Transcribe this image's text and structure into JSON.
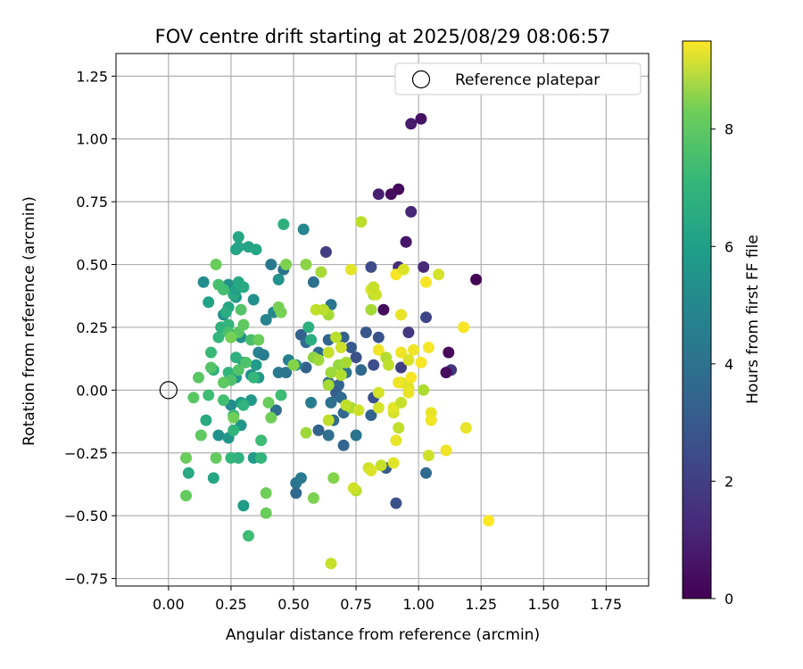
{
  "chart_data": {
    "type": "scatter",
    "title": "FOV centre drift starting at 2025/08/29 08:06:57",
    "xlabel": "Angular distance from reference (arcmin)",
    "ylabel": "Rotation from reference (arcmin)",
    "xlim": [
      -0.21,
      1.92
    ],
    "ylim": [
      -0.78,
      1.34
    ],
    "x_ticks": [
      "0.00",
      "0.25",
      "0.50",
      "0.75",
      "1.00",
      "1.25",
      "1.50",
      "1.75"
    ],
    "y_ticks": [
      "−0.75",
      "−0.50",
      "−0.25",
      "0.00",
      "0.25",
      "0.50",
      "0.75",
      "1.00",
      "1.25"
    ],
    "grid": true,
    "legend": {
      "position": "top-right",
      "entries": [
        "Reference platepar"
      ]
    },
    "colorbar": {
      "label": "Hours from first FF file",
      "range": [
        0,
        9.5
      ],
      "ticks": [
        "0",
        "2",
        "4",
        "6",
        "8"
      ],
      "colormap": "viridis"
    },
    "reference_point": {
      "x": 0.0,
      "y": 0.0
    },
    "series": [
      {
        "points": [
          [
            1.01,
            1.08,
            0.4
          ],
          [
            0.97,
            1.06,
            0.7
          ],
          [
            0.92,
            0.8,
            0.2
          ],
          [
            0.84,
            0.78,
            0.8
          ],
          [
            0.89,
            0.78,
            0.3
          ],
          [
            0.97,
            0.71,
            1.0
          ],
          [
            0.95,
            0.59,
            0.5
          ],
          [
            0.95,
            0.59,
            0.6
          ],
          [
            1.23,
            0.44,
            0.1
          ],
          [
            1.02,
            0.49,
            1.1
          ],
          [
            0.92,
            0.49,
            1.2
          ],
          [
            0.86,
            0.32,
            0.3
          ],
          [
            1.12,
            0.15,
            0.2
          ],
          [
            1.13,
            0.08,
            1.5
          ],
          [
            1.11,
            0.07,
            0.3
          ],
          [
            0.63,
            0.55,
            1.7
          ],
          [
            0.96,
            0.23,
            1.6
          ],
          [
            1.03,
            0.29,
            2.0
          ],
          [
            0.81,
            0.49,
            2.2
          ],
          [
            0.93,
            0.09,
            1.8
          ],
          [
            0.82,
            0.1,
            2.3
          ],
          [
            0.84,
            0.21,
            2.5
          ],
          [
            0.87,
            -0.31,
            2.8
          ],
          [
            0.91,
            -0.45,
            2.4
          ],
          [
            1.03,
            -0.33,
            3.3
          ],
          [
            0.79,
            0.23,
            2.6
          ],
          [
            0.73,
            0.17,
            2.7
          ],
          [
            0.75,
            0.13,
            2.4
          ],
          [
            0.7,
            0.21,
            3.0
          ],
          [
            0.77,
            0.08,
            3.2
          ],
          [
            0.64,
            0.2,
            3.1
          ],
          [
            0.58,
            0.43,
            3.5
          ],
          [
            0.53,
            0.22,
            2.9
          ],
          [
            0.55,
            0.19,
            3.3
          ],
          [
            0.57,
            0.2,
            3.8
          ],
          [
            0.6,
            0.15,
            3.4
          ],
          [
            0.55,
            0.09,
            3.0
          ],
          [
            0.65,
            0.34,
            3.7
          ],
          [
            0.64,
            0.03,
            3.4
          ],
          [
            0.68,
            0.02,
            3.1
          ],
          [
            0.71,
            0.07,
            3.6
          ],
          [
            0.67,
            -0.01,
            2.8
          ],
          [
            0.69,
            -0.03,
            3.3
          ],
          [
            0.82,
            -0.03,
            2.4
          ],
          [
            0.65,
            -0.05,
            3.5
          ],
          [
            0.7,
            -0.09,
            3.2
          ],
          [
            0.66,
            -0.12,
            3.3
          ],
          [
            0.6,
            -0.16,
            3.0
          ],
          [
            0.64,
            -0.18,
            3.4
          ],
          [
            0.7,
            -0.22,
            3.1
          ],
          [
            0.75,
            -0.18,
            3.6
          ],
          [
            0.81,
            -0.1,
            3.0
          ],
          [
            0.57,
            -0.05,
            4.0
          ],
          [
            0.51,
            -0.37,
            3.6
          ],
          [
            0.53,
            -0.35,
            3.9
          ],
          [
            0.51,
            -0.41,
            3.2
          ],
          [
            0.41,
            0.5,
            3.8
          ],
          [
            0.46,
            0.48,
            3.6
          ],
          [
            0.44,
            0.07,
            3.9
          ],
          [
            0.43,
            -0.08,
            3.4
          ],
          [
            0.39,
            0.28,
            4.3
          ],
          [
            0.36,
            0.15,
            4.3
          ],
          [
            0.38,
            0.14,
            4.0
          ],
          [
            0.48,
            0.12,
            4.2
          ],
          [
            0.47,
            0.07,
            3.7
          ],
          [
            0.51,
            0.1,
            4.6
          ],
          [
            0.54,
            0.64,
            4.4
          ],
          [
            0.42,
            0.31,
            4.5
          ],
          [
            0.44,
            0.44,
            4.9
          ],
          [
            0.34,
            0.36,
            4.8
          ],
          [
            0.27,
            0.37,
            5.1
          ],
          [
            0.24,
            0.42,
            4.8
          ],
          [
            0.14,
            0.43,
            4.6
          ],
          [
            0.22,
            0.3,
            4.8
          ],
          [
            0.29,
            0.21,
            4.8
          ],
          [
            0.25,
            0.21,
            5.2
          ],
          [
            0.3,
            0.11,
            5.0
          ],
          [
            0.33,
            0.06,
            4.8
          ],
          [
            0.35,
            0.1,
            5.2
          ],
          [
            0.36,
            0.05,
            5.2
          ],
          [
            0.27,
            0.05,
            5.0
          ],
          [
            0.25,
            -0.06,
            4.6
          ],
          [
            0.29,
            -0.05,
            5.3
          ],
          [
            0.33,
            -0.04,
            5.0
          ],
          [
            0.24,
            -0.19,
            5.0
          ],
          [
            0.29,
            -0.14,
            5.0
          ],
          [
            0.34,
            -0.27,
            5.2
          ],
          [
            0.2,
            -0.18,
            4.8
          ],
          [
            0.3,
            -0.46,
            5.2
          ],
          [
            0.18,
            -0.35,
            5.6
          ],
          [
            0.08,
            -0.33,
            5.7
          ],
          [
            0.15,
            -0.12,
            5.8
          ],
          [
            0.26,
            0.38,
            5.8
          ],
          [
            0.27,
            0.4,
            5.4
          ],
          [
            0.24,
            0.33,
            5.6
          ],
          [
            0.23,
            0.31,
            5.9
          ],
          [
            0.28,
            0.57,
            5.6
          ],
          [
            0.28,
            0.61,
            5.6
          ],
          [
            0.32,
            0.57,
            5.5
          ],
          [
            0.35,
            0.56,
            5.6
          ],
          [
            0.46,
            0.66,
            6.0
          ],
          [
            0.56,
            0.25,
            6.0
          ],
          [
            0.57,
            0.2,
            5.9
          ],
          [
            0.3,
            0.41,
            5.8
          ],
          [
            0.16,
            0.35,
            5.4
          ],
          [
            0.27,
            0.56,
            5.5
          ],
          [
            0.28,
            0.43,
            5.7
          ],
          [
            0.17,
            0.15,
            6.4
          ],
          [
            0.18,
            0.08,
            6.1
          ],
          [
            0.2,
            0.21,
            6.3
          ],
          [
            0.21,
            0.25,
            6.1
          ],
          [
            0.24,
            0.26,
            6.2
          ],
          [
            0.27,
            0.13,
            6.0
          ],
          [
            0.3,
            -0.06,
            6.1
          ],
          [
            0.24,
            0.07,
            6.2
          ],
          [
            0.26,
            -0.1,
            6.3
          ],
          [
            0.26,
            -0.16,
            6.2
          ],
          [
            0.25,
            -0.27,
            6.3
          ],
          [
            0.28,
            -0.27,
            6.1
          ],
          [
            0.37,
            -0.27,
            6.2
          ],
          [
            0.37,
            -0.2,
            6.5
          ],
          [
            0.34,
            0.05,
            6.3
          ],
          [
            0.45,
            -0.02,
            6.5
          ],
          [
            0.22,
            -0.04,
            6.6
          ],
          [
            0.25,
            0.04,
            6.8
          ],
          [
            0.28,
            0.23,
            7.0
          ],
          [
            0.29,
            0.32,
            6.9
          ],
          [
            0.3,
            0.26,
            7.1
          ],
          [
            0.24,
            0.23,
            6.7
          ],
          [
            0.22,
            0.03,
            7.1
          ],
          [
            0.28,
            0.08,
            6.9
          ],
          [
            0.31,
            0.11,
            6.8
          ],
          [
            0.33,
            0.2,
            6.7
          ],
          [
            0.2,
            0.42,
            6.7
          ],
          [
            0.22,
            0.4,
            6.6
          ],
          [
            0.16,
            -0.02,
            6.5
          ],
          [
            0.17,
            0.09,
            6.9
          ],
          [
            0.12,
            0.05,
            7.0
          ],
          [
            0.1,
            -0.03,
            7.0
          ],
          [
            0.13,
            -0.18,
            7.1
          ],
          [
            0.19,
            -0.27,
            7.2
          ],
          [
            0.36,
            0.2,
            7.3
          ],
          [
            0.4,
            -0.05,
            7.3
          ],
          [
            0.41,
            -0.11,
            7.4
          ],
          [
            0.39,
            -0.41,
            7.4
          ],
          [
            0.39,
            -0.49,
            7.3
          ],
          [
            0.07,
            -0.27,
            7.3
          ],
          [
            0.07,
            -0.42,
            7.2
          ],
          [
            0.32,
            -0.58,
            6.5
          ],
          [
            0.19,
            0.5,
            7.3
          ],
          [
            0.25,
            0.21,
            7.5
          ],
          [
            0.26,
            -0.11,
            7.4
          ],
          [
            0.44,
            0.33,
            7.5
          ],
          [
            0.45,
            0.31,
            7.5
          ],
          [
            0.47,
            0.5,
            7.6
          ],
          [
            0.5,
            0.1,
            7.7
          ],
          [
            0.55,
            0.5,
            7.8
          ],
          [
            0.58,
            -0.43,
            7.6
          ],
          [
            0.58,
            0.13,
            7.8
          ],
          [
            0.66,
            -0.35,
            7.7
          ],
          [
            0.55,
            -0.17,
            8.1
          ],
          [
            0.6,
            0.12,
            8.1
          ],
          [
            0.64,
            0.3,
            8.2
          ],
          [
            0.61,
            0.47,
            8.2
          ],
          [
            0.65,
            0.07,
            8.1
          ],
          [
            0.68,
            0.1,
            8.0
          ],
          [
            0.69,
            0.06,
            8.4
          ],
          [
            0.71,
            0.11,
            8.2
          ],
          [
            0.64,
            0.02,
            8.2
          ],
          [
            0.73,
            -0.07,
            8.2
          ],
          [
            0.81,
            0.32,
            8.2
          ],
          [
            0.82,
            0.38,
            8.3
          ],
          [
            0.77,
            0.67,
            8.5
          ],
          [
            0.75,
            -0.4,
            8.5
          ],
          [
            0.71,
            -0.06,
            8.6
          ],
          [
            0.69,
            0.17,
            8.8
          ],
          [
            0.64,
            0.15,
            8.7
          ],
          [
            0.64,
            -0.12,
            8.6
          ],
          [
            0.67,
            0.21,
            8.5
          ],
          [
            0.59,
            0.32,
            8.6
          ],
          [
            0.62,
            0.32,
            8.5
          ],
          [
            0.65,
            -0.69,
            8.7
          ],
          [
            0.74,
            -0.39,
            8.8
          ],
          [
            0.76,
            -0.08,
            8.8
          ],
          [
            0.73,
            0.48,
            9.1
          ],
          [
            0.81,
            0.4,
            9.0
          ],
          [
            0.83,
            0.38,
            8.8
          ],
          [
            0.82,
            0.41,
            8.7
          ],
          [
            0.84,
            -0.01,
            8.9
          ],
          [
            0.84,
            -0.07,
            8.9
          ],
          [
            0.8,
            -0.31,
            8.8
          ],
          [
            0.81,
            -0.32,
            9.0
          ],
          [
            0.85,
            -0.3,
            8.7
          ],
          [
            0.9,
            -0.29,
            9.1
          ],
          [
            0.9,
            -0.09,
            8.9
          ],
          [
            0.9,
            -0.07,
            9.1
          ],
          [
            0.91,
            -0.2,
            9.2
          ],
          [
            0.92,
            -0.15,
            8.6
          ],
          [
            0.93,
            0.03,
            8.9
          ],
          [
            0.93,
            -0.05,
            8.7
          ],
          [
            0.92,
            0.03,
            9.3
          ],
          [
            0.93,
            0.3,
            9.2
          ],
          [
            0.91,
            0.46,
            9.4
          ],
          [
            0.94,
            0.48,
            9.0
          ],
          [
            0.93,
            0.15,
            9.3
          ],
          [
            0.96,
            0.12,
            9.0
          ],
          [
            0.96,
            0.01,
            9.1
          ],
          [
            0.96,
            -0.01,
            9.2
          ],
          [
            0.97,
            0.05,
            9.4
          ],
          [
            0.98,
            0.16,
            9.3
          ],
          [
            1.01,
            0.11,
            9.4
          ],
          [
            1.02,
            0.0,
            8.3
          ],
          [
            1.04,
            -0.26,
            8.8
          ],
          [
            1.05,
            -0.09,
            9.2
          ],
          [
            1.05,
            -0.12,
            9.3
          ],
          [
            1.03,
            0.43,
            9.4
          ],
          [
            1.04,
            0.17,
            9.4
          ],
          [
            1.08,
            0.46,
            8.9
          ],
          [
            1.11,
            -0.24,
            9.3
          ],
          [
            1.18,
            0.25,
            9.4
          ],
          [
            1.19,
            -0.15,
            9.2
          ],
          [
            1.28,
            -0.52,
            9.5
          ],
          [
            0.84,
            0.16,
            9.3
          ],
          [
            0.87,
            0.13,
            8.4
          ],
          [
            0.88,
            0.1,
            8.6
          ]
        ]
      }
    ]
  }
}
